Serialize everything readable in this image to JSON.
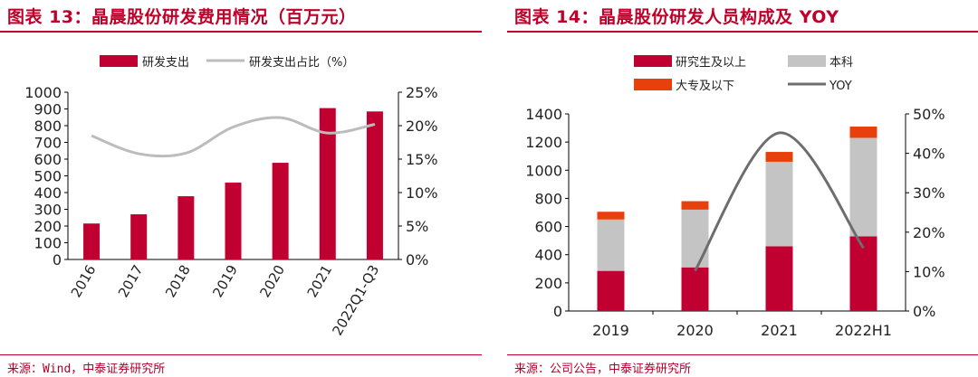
{
  "colors": {
    "accent": "#c0002a",
    "bar": "#c00030",
    "gray": "#c4c4c4",
    "orange": "#e8400c",
    "line": "#bcbcbc",
    "darkline": "#6d6d6d",
    "axis": "#000000"
  },
  "chart_data": [
    {
      "type": "bar",
      "title": "图表 13：晶晨股份研发费用情况（百万元）",
      "source": "来源：Wind，中泰证券研究所",
      "categories": [
        "2016",
        "2017",
        "2018",
        "2019",
        "2020",
        "2021",
        "2022Q1-Q3"
      ],
      "series": [
        {
          "name": "研发支出",
          "type": "bar",
          "axis": "left",
          "values": [
            215,
            270,
            378,
            460,
            578,
            905,
            885
          ]
        },
        {
          "name": "研发支出占比（%）",
          "type": "line",
          "axis": "right",
          "values": [
            18.5,
            15.8,
            15.9,
            19.8,
            21.2,
            18.9,
            20.2
          ]
        }
      ],
      "y_left": {
        "min": 0,
        "max": 1000,
        "step": 100,
        "ticks": [
          "0",
          "100",
          "200",
          "300",
          "400",
          "500",
          "600",
          "700",
          "800",
          "900",
          "1000"
        ]
      },
      "y_right": {
        "min": 0,
        "max": 25,
        "step": 5,
        "ticks": [
          "0%",
          "5%",
          "10%",
          "15%",
          "20%",
          "25%"
        ]
      },
      "legend": "top"
    },
    {
      "type": "bar",
      "stacked": true,
      "title": "图表 14：晶晨股份研发人员构成及 YOY",
      "source": "来源：公司公告，中泰证券研究所",
      "categories": [
        "2019",
        "2020",
        "2021",
        "2022H1"
      ],
      "series": [
        {
          "name": "研究生及以上",
          "type": "bar",
          "axis": "left",
          "values": [
            285,
            310,
            460,
            530
          ]
        },
        {
          "name": "本科",
          "type": "bar",
          "axis": "left",
          "values": [
            365,
            410,
            600,
            700
          ]
        },
        {
          "name": "大专及以下",
          "type": "bar",
          "axis": "left",
          "values": [
            55,
            60,
            70,
            80
          ]
        },
        {
          "name": "YOY",
          "type": "line",
          "axis": "right",
          "values": [
            null,
            10.2,
            45.2,
            16.0
          ]
        }
      ],
      "y_left": {
        "min": 0,
        "max": 1400,
        "step": 200,
        "ticks": [
          "0",
          "200",
          "400",
          "600",
          "800",
          "1000",
          "1200",
          "1400"
        ]
      },
      "y_right": {
        "min": 0,
        "max": 50,
        "step": 10,
        "ticks": [
          "0%",
          "10%",
          "20%",
          "30%",
          "40%",
          "50%"
        ]
      },
      "legend": "top"
    }
  ]
}
